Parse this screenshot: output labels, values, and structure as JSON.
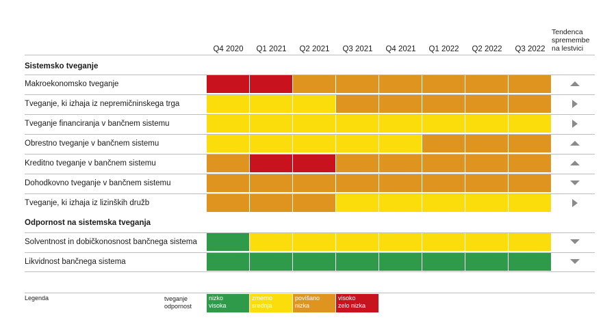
{
  "colors": {
    "green": "#2e9a4a",
    "yellow": "#fadd0a",
    "orange": "#df9420",
    "red": "#c8121e"
  },
  "header": {
    "quarters": [
      "Q4 2020",
      "Q1 2021",
      "Q2 2021",
      "Q3 2021",
      "Q4 2021",
      "Q1 2022",
      "Q2 2022",
      "Q3 2022"
    ],
    "trend_label": "Tendenca spremembe na lestvici"
  },
  "sections": {
    "systemic": "Sistemsko tveganje",
    "resilience": "Odpornost na sistemska tveganja"
  },
  "chart_data": {
    "type": "heatmap",
    "x": [
      "Q4 2020",
      "Q1 2021",
      "Q2 2021",
      "Q3 2021",
      "Q4 2021",
      "Q1 2022",
      "Q2 2022",
      "Q3 2022"
    ],
    "rows": [
      {
        "label": "Makroekonomsko tveganje",
        "levels": [
          "red",
          "red",
          "orange",
          "orange",
          "orange",
          "orange",
          "orange",
          "orange"
        ],
        "trend": "up"
      },
      {
        "label": "Tveganje, ki izhaja iz nepremičninskega trga",
        "levels": [
          "yellow",
          "yellow",
          "yellow",
          "orange",
          "orange",
          "orange",
          "orange",
          "orange"
        ],
        "trend": "right"
      },
      {
        "label": "Tveganje financiranja v bančnem sistemu",
        "levels": [
          "yellow",
          "yellow",
          "yellow",
          "yellow",
          "yellow",
          "yellow",
          "yellow",
          "yellow"
        ],
        "trend": "right"
      },
      {
        "label": "Obrestno tveganje v bančnem sistemu",
        "levels": [
          "yellow",
          "yellow",
          "yellow",
          "yellow",
          "yellow",
          "orange",
          "orange",
          "orange"
        ],
        "trend": "up"
      },
      {
        "label": "Kreditno tveganje v bančnem sistemu",
        "levels": [
          "orange",
          "red",
          "red",
          "orange",
          "orange",
          "orange",
          "orange",
          "orange"
        ],
        "trend": "up"
      },
      {
        "label": "Dohodkovno tveganje v bančnem sistemu",
        "levels": [
          "orange",
          "orange",
          "orange",
          "orange",
          "orange",
          "orange",
          "orange",
          "orange"
        ],
        "trend": "down"
      },
      {
        "label": "Tveganje, ki izhaja iz lizinških družb",
        "levels": [
          "orange",
          "orange",
          "orange",
          "yellow",
          "yellow",
          "yellow",
          "yellow",
          "yellow"
        ],
        "trend": "right"
      },
      {
        "label": "Solventnost in dobičkonosnost bančnega sistema",
        "levels": [
          "green",
          "yellow",
          "yellow",
          "yellow",
          "yellow",
          "yellow",
          "yellow",
          "yellow"
        ],
        "trend": "down"
      },
      {
        "label": "Likvidnost bančnega sistema",
        "levels": [
          "green",
          "green",
          "green",
          "green",
          "green",
          "green",
          "green",
          "green"
        ],
        "trend": "down"
      }
    ]
  },
  "legend": {
    "title": "Legenda",
    "row1_label": "tveganje",
    "row2_label": "odpornost",
    "items": [
      {
        "color": "green",
        "risk": "nizko",
        "resilience": "visoka"
      },
      {
        "color": "yellow",
        "risk": "zmerno",
        "resilience": "srednja"
      },
      {
        "color": "orange",
        "risk": "povišano",
        "resilience": "nizka"
      },
      {
        "color": "red",
        "risk": "visoko",
        "resilience": "zelo nizka"
      }
    ]
  }
}
